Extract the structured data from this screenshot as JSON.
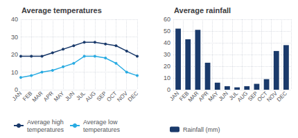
{
  "chart_data": [
    {
      "type": "line",
      "title": "Average temperatures",
      "categories": [
        "JAN",
        "FEB",
        "MAR",
        "APR",
        "MAY",
        "JUN",
        "JUL",
        "AUG",
        "SEP",
        "OCT",
        "NOV",
        "DEC"
      ],
      "series": [
        {
          "name": "Average high\ntemperatures",
          "color": "#1a3a6b",
          "marker": "circle",
          "values": [
            19,
            19,
            19,
            21,
            23,
            25,
            27,
            27,
            26,
            25,
            22,
            19
          ]
        },
        {
          "name": "Average low\ntemperatures",
          "color": "#29abe2",
          "marker": "circle",
          "values": [
            7,
            8,
            10,
            11,
            13,
            15,
            19,
            19,
            18,
            15,
            10,
            8
          ]
        }
      ],
      "ylim": [
        0,
        40
      ],
      "yticks": [
        0,
        10,
        20,
        30,
        40
      ],
      "grid": true,
      "legend": "bottom"
    },
    {
      "type": "bar",
      "title": "Average rainfall",
      "categories": [
        "JAN",
        "FEB",
        "MAR",
        "APR",
        "MAY",
        "JUN",
        "JUL",
        "AUG",
        "SEP",
        "OCT",
        "NOV",
        "DEC"
      ],
      "series": [
        {
          "name": "Rainfall (mm)",
          "color": "#1a3a6b",
          "values": [
            52,
            43,
            51,
            23,
            6,
            3,
            2,
            3,
            5,
            9,
            33,
            38
          ]
        }
      ],
      "ylim": [
        0,
        60
      ],
      "yticks": [
        0,
        10,
        20,
        30,
        40,
        50,
        60
      ],
      "grid": true,
      "legend": "bottom"
    }
  ]
}
